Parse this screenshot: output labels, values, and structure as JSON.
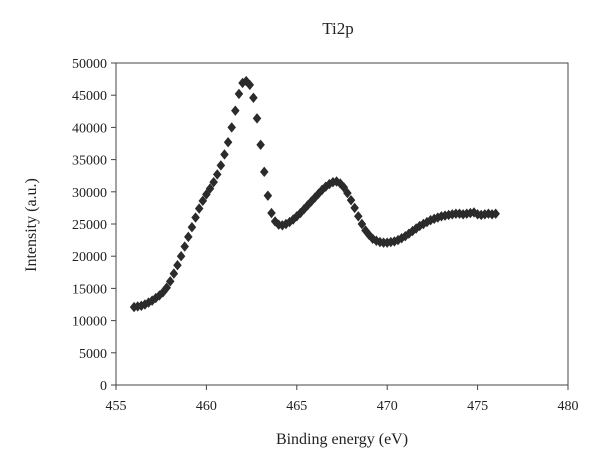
{
  "chart_data": {
    "type": "scatter",
    "title": "Ti2p",
    "xlabel": "Binding energy (eV)",
    "ylabel": "Intensity (a.u.)",
    "xlim": [
      455,
      480
    ],
    "ylim": [
      0,
      50000
    ],
    "x_ticks": [
      "455",
      "460",
      "465",
      "470",
      "475",
      "480"
    ],
    "y_ticks": [
      "0",
      "5000",
      "10000",
      "15000",
      "20000",
      "25000",
      "30000",
      "35000",
      "40000",
      "45000",
      "50000"
    ],
    "grid": false,
    "legend": "none",
    "marker": "diamond",
    "marker_color": "#2b2b2b",
    "series": [
      {
        "x": [
          456.0,
          456.2,
          456.4,
          456.6,
          456.8,
          457.0,
          457.2,
          457.4,
          457.6,
          457.8,
          458.0,
          458.2,
          458.4,
          458.6,
          458.8,
          459.0,
          459.2,
          459.4,
          459.6,
          459.8,
          460.0,
          460.2,
          460.4,
          460.6,
          460.8,
          461.0,
          461.2,
          461.4,
          461.6,
          461.8,
          462.0,
          462.2,
          462.4,
          462.6,
          462.8,
          463.0,
          463.2,
          463.4,
          463.6,
          463.8,
          464.0,
          464.2,
          464.4,
          464.6,
          464.8,
          465.0,
          465.2,
          465.4,
          465.6,
          465.8,
          466.0,
          466.2,
          466.4,
          466.6,
          466.8,
          467.0,
          467.2,
          467.4,
          467.6,
          467.8,
          468.0,
          468.2,
          468.4,
          468.6,
          468.8,
          469.0,
          469.2,
          469.4,
          469.6,
          469.8,
          470.0,
          470.2,
          470.4,
          470.6,
          470.8,
          471.0,
          471.2,
          471.4,
          471.6,
          471.8,
          472.0,
          472.2,
          472.4,
          472.6,
          472.8,
          473.0,
          473.2,
          473.4,
          473.6,
          473.8,
          474.0,
          474.2,
          474.4,
          474.6,
          474.8,
          475.0,
          475.2,
          475.4,
          475.6,
          475.8,
          476.0
        ],
        "y": [
          12100,
          12200,
          12300,
          12500,
          12800,
          13100,
          13500,
          13900,
          14400,
          15100,
          16100,
          17300,
          18600,
          20000,
          21500,
          23000,
          24500,
          26000,
          27400,
          28600,
          29600,
          30500,
          31500,
          32700,
          34100,
          35800,
          37700,
          40000,
          42600,
          45200,
          46900,
          47200,
          46600,
          44600,
          41400,
          37300,
          33100,
          29400,
          26700,
          25400,
          24900,
          24800,
          25000,
          25300,
          25700,
          26200,
          26700,
          27300,
          27900,
          28500,
          29100,
          29700,
          30300,
          30800,
          31200,
          31500,
          31600,
          31300,
          30700,
          29800,
          28700,
          27500,
          26200,
          25000,
          24000,
          23300,
          22700,
          22400,
          22200,
          22100,
          22100,
          22200,
          22300,
          22500,
          22800,
          23100,
          23500,
          23900,
          24300,
          24700,
          25000,
          25300,
          25600,
          25800,
          26000,
          26200,
          26300,
          26400,
          26500,
          26600,
          26600,
          26500,
          26600,
          26700,
          26800,
          26500,
          26400,
          26500,
          26600,
          26500,
          26600
        ]
      }
    ]
  }
}
